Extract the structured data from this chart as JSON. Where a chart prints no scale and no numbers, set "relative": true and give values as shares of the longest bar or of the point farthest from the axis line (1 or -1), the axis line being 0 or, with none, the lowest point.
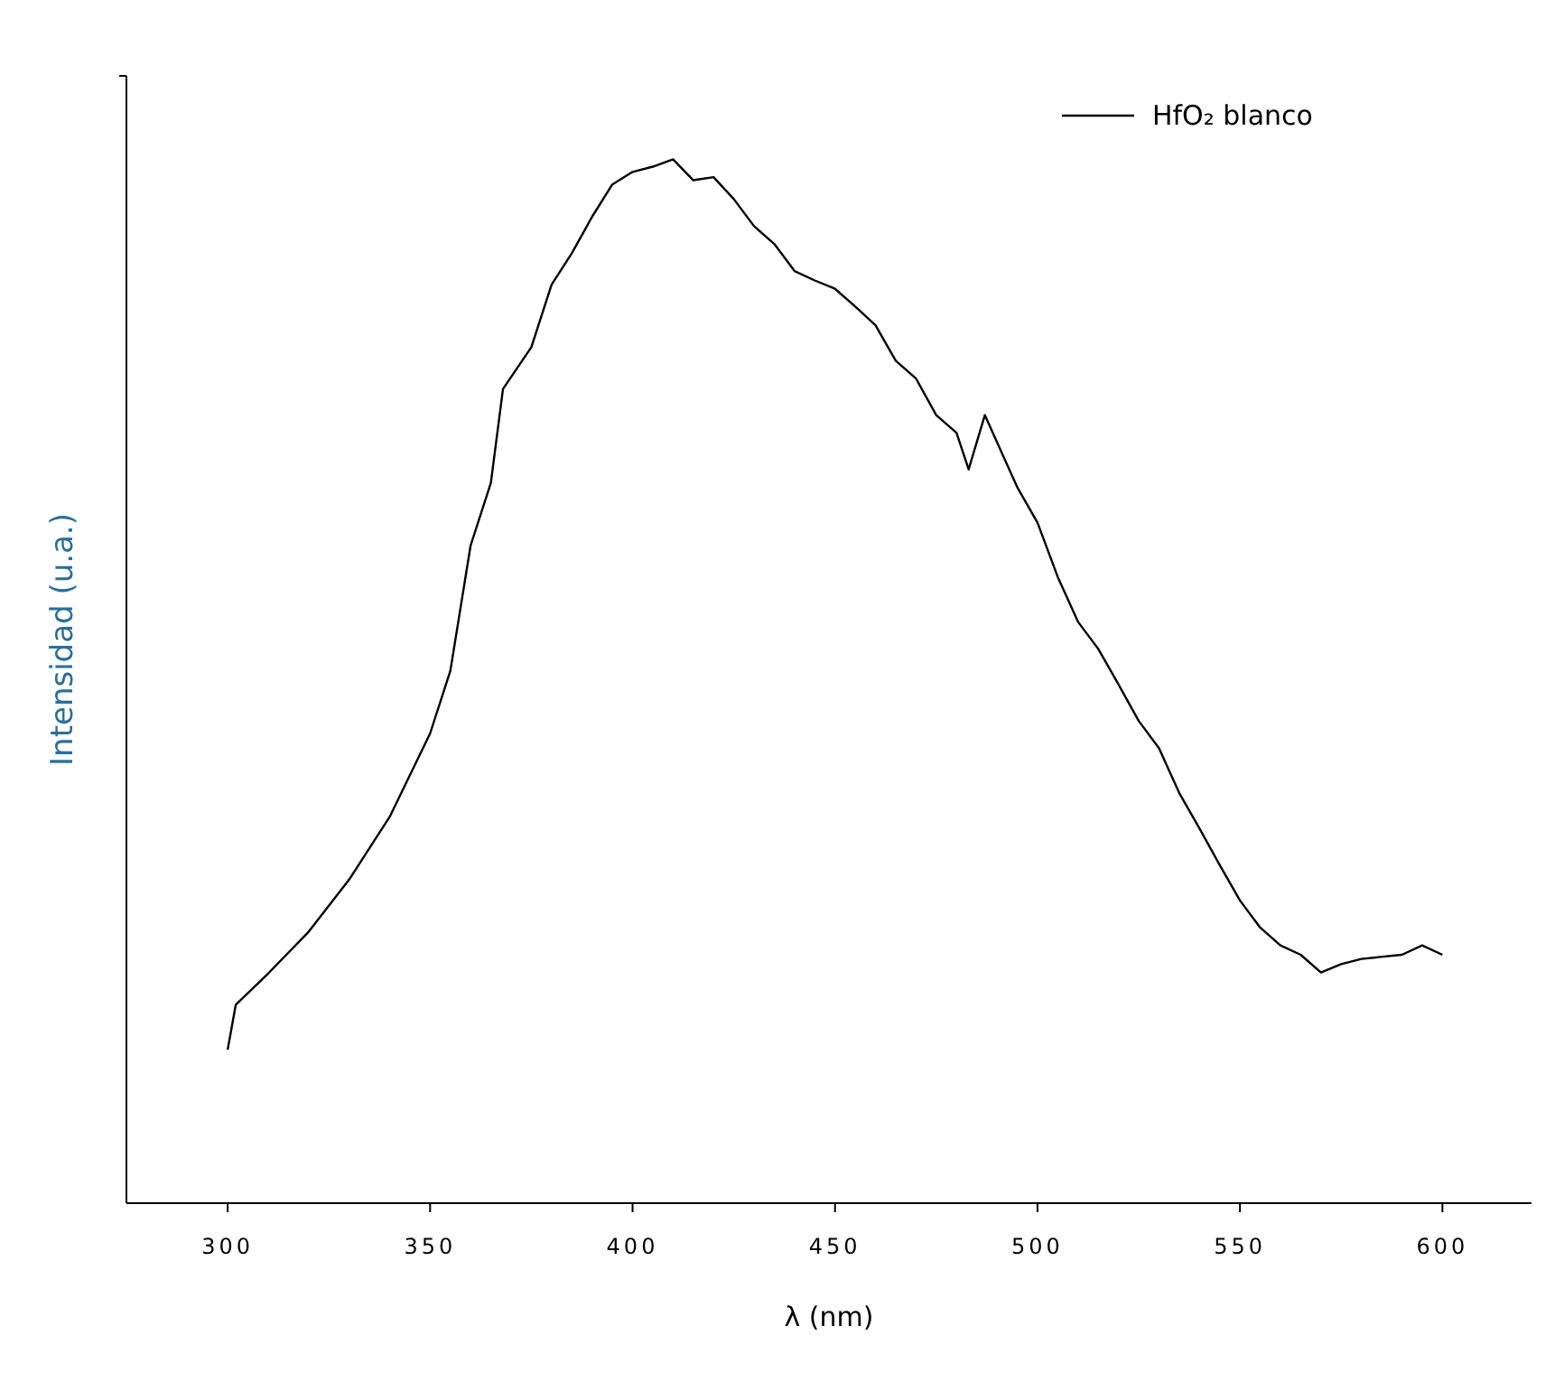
{
  "chart_data": {
    "type": "line",
    "xlabel": "λ (nm)",
    "ylabel": "Intensidad (u.a.)",
    "relative": true,
    "xlim": [
      275,
      622
    ],
    "xticks": [
      300,
      350,
      400,
      450,
      500,
      550,
      600
    ],
    "legend": "top right",
    "grid": false,
    "series": [
      {
        "name": "HfO₂ blanco",
        "color": "#000000",
        "x": [
          300,
          302,
          310,
          320,
          330,
          340,
          345,
          350,
          355,
          360,
          365,
          368,
          375,
          380,
          385,
          390,
          395,
          400,
          405,
          410,
          415,
          420,
          425,
          430,
          435,
          440,
          445,
          450,
          455,
          460,
          465,
          470,
          475,
          480,
          483,
          487,
          490,
          495,
          500,
          505,
          510,
          515,
          520,
          525,
          530,
          535,
          540,
          545,
          550,
          555,
          560,
          565,
          570,
          575,
          580,
          590,
          595,
          600
        ],
        "values": [
          0.147,
          0.19,
          0.22,
          0.26,
          0.31,
          0.37,
          0.41,
          0.45,
          0.51,
          0.63,
          0.69,
          0.78,
          0.82,
          0.88,
          0.91,
          0.945,
          0.976,
          0.988,
          0.993,
          1.0,
          0.98,
          0.983,
          0.962,
          0.936,
          0.919,
          0.893,
          0.884,
          0.876,
          0.859,
          0.841,
          0.807,
          0.79,
          0.755,
          0.738,
          0.703,
          0.755,
          0.729,
          0.686,
          0.652,
          0.6,
          0.557,
          0.531,
          0.497,
          0.462,
          0.436,
          0.393,
          0.359,
          0.324,
          0.29,
          0.264,
          0.247,
          0.238,
          0.221,
          0.229,
          0.234,
          0.238,
          0.247,
          0.238
        ]
      }
    ]
  }
}
